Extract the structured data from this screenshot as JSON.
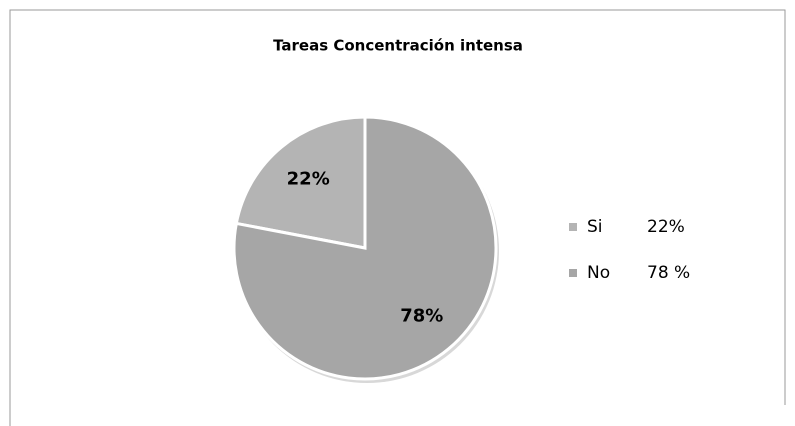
{
  "chart_data": {
    "type": "pie",
    "title": "Tareas Concentración intensa",
    "categories": [
      "Si",
      "No"
    ],
    "values": [
      22,
      78
    ],
    "value_labels": [
      "22%",
      "78%"
    ],
    "legend_values": [
      "22%",
      "78 %"
    ],
    "colors": [
      "#b4b4b4",
      "#a6a6a6"
    ],
    "legend": "right"
  }
}
